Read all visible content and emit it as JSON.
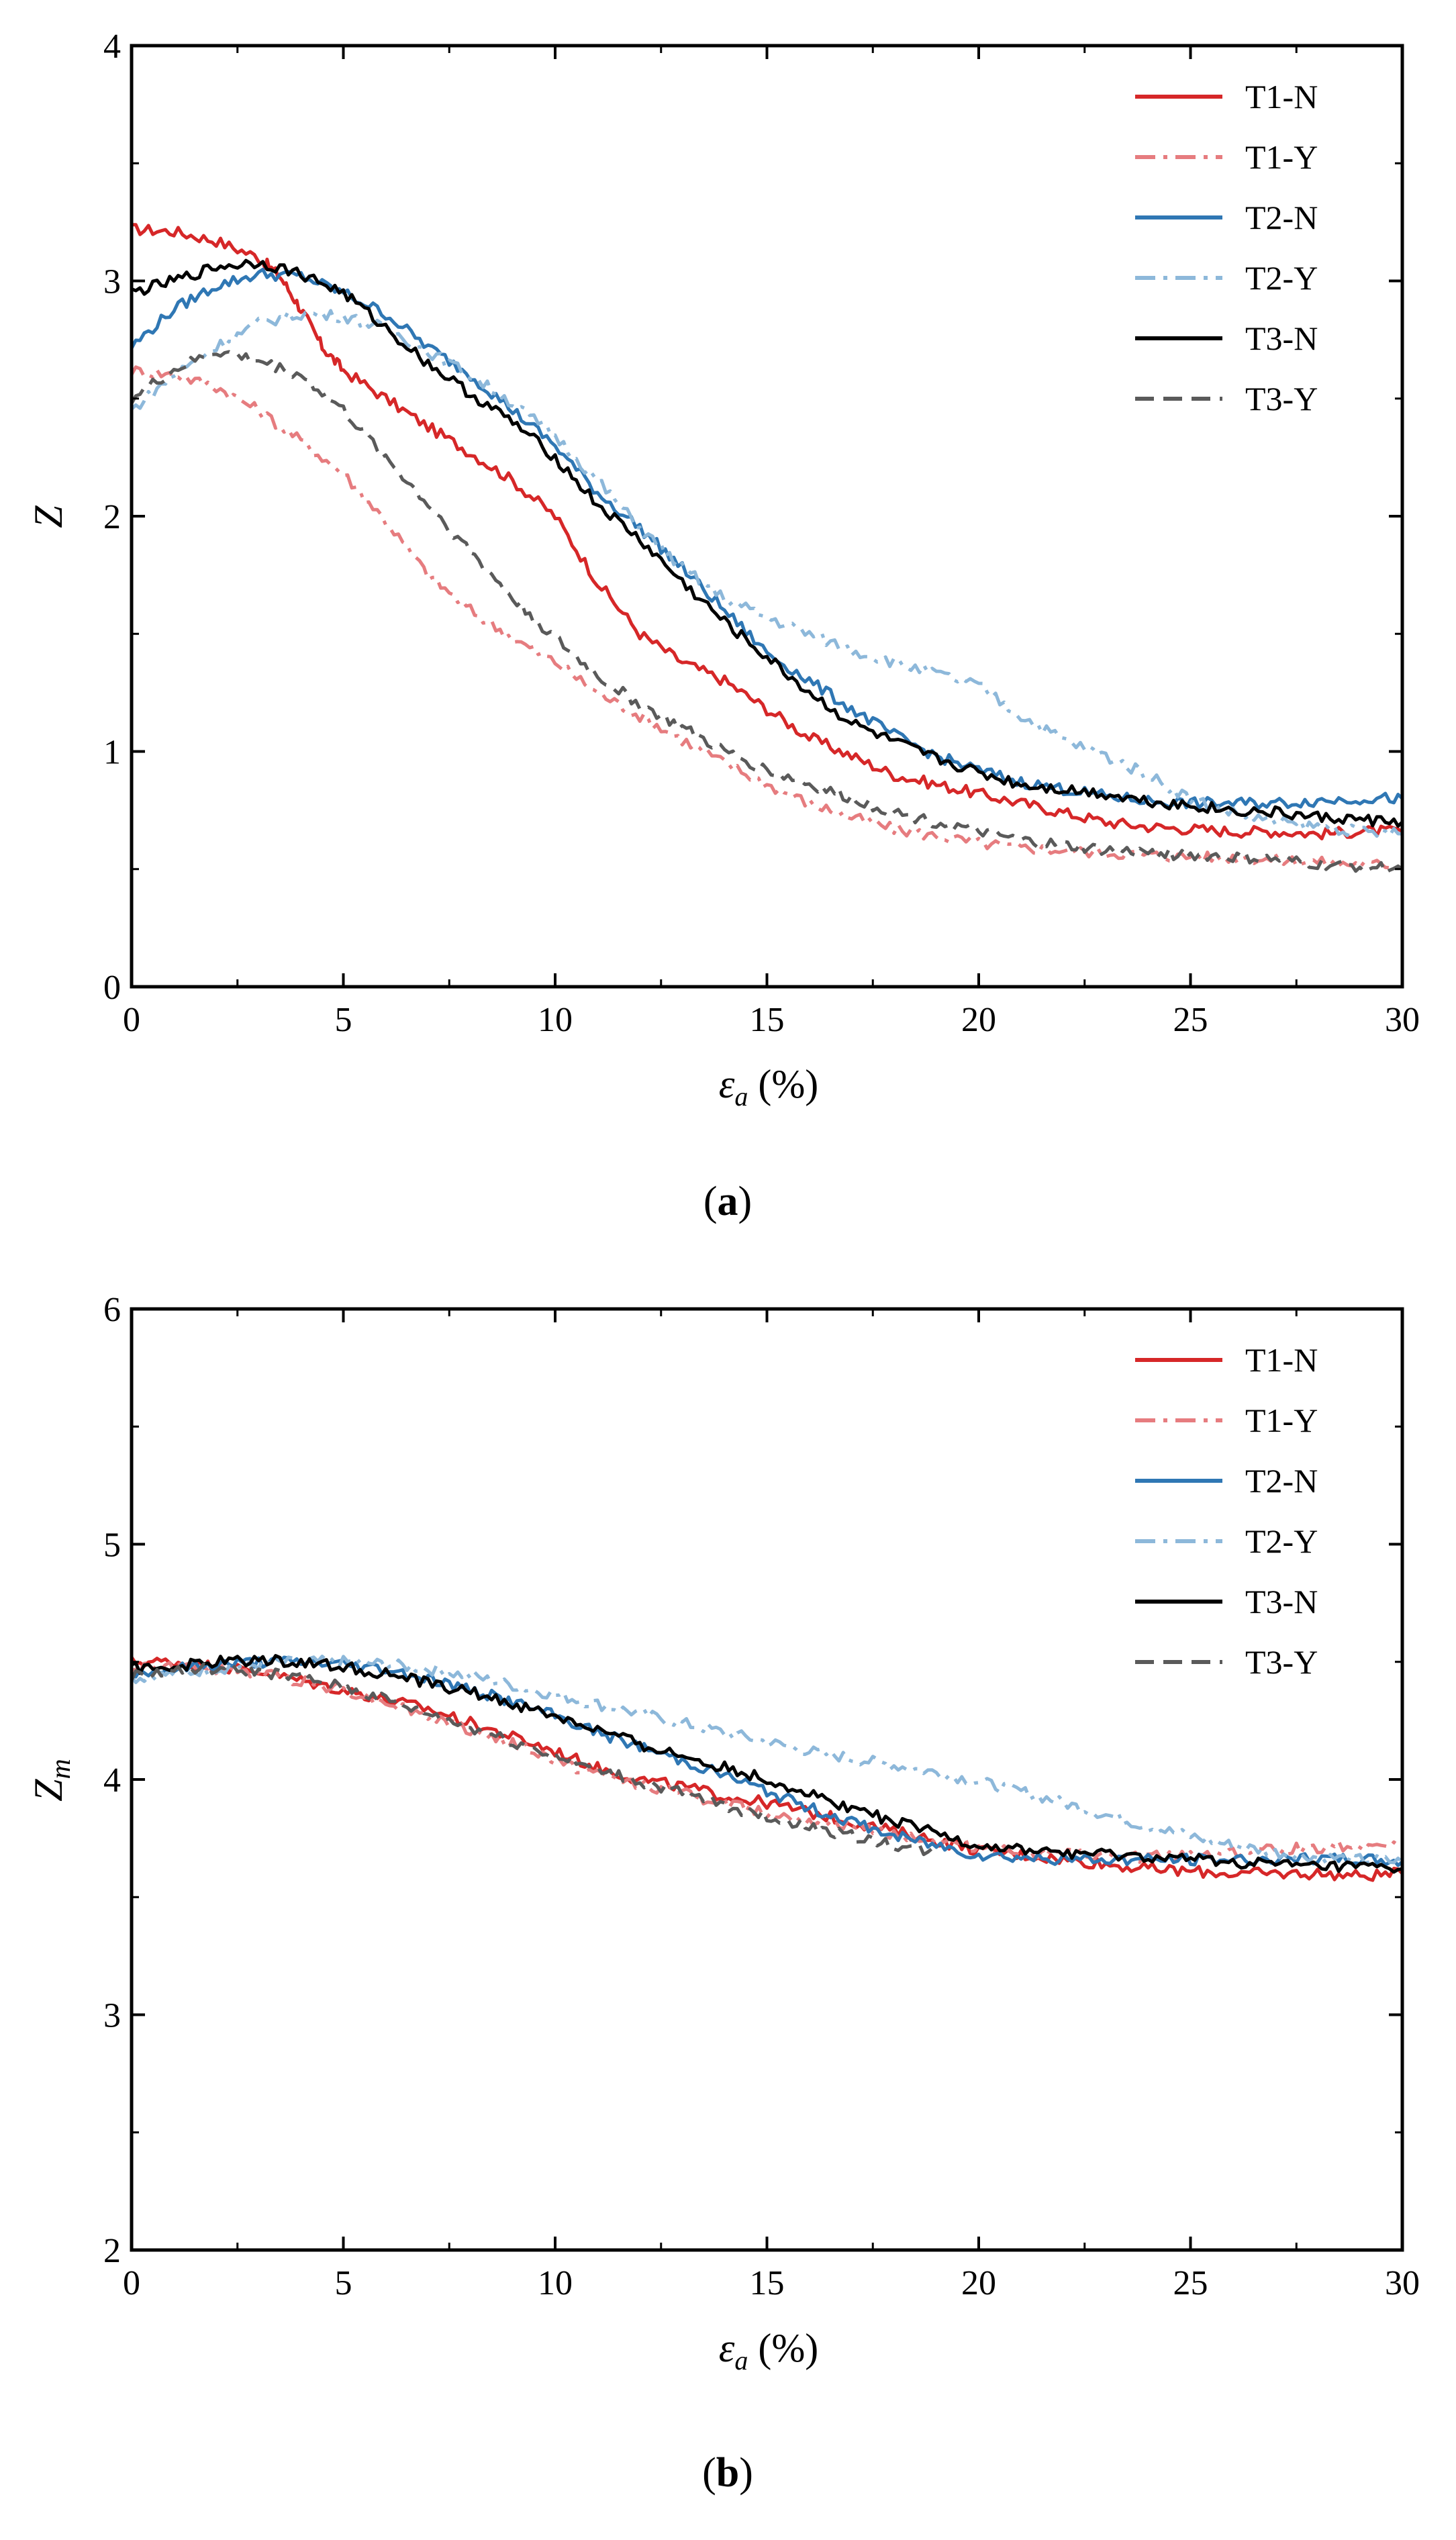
{
  "chart_data": [
    {
      "panel_label": "a",
      "type": "line",
      "ylabel": "Z",
      "xlabel": "εa (%)",
      "xlabel_main": "ε",
      "xlabel_sub": "a",
      "xlabel_unit": " (%)",
      "xlim": [
        0,
        30
      ],
      "ylim": [
        0,
        4
      ],
      "xticks": [
        0,
        5,
        10,
        15,
        20,
        25,
        30
      ],
      "yticks": [
        0,
        1,
        2,
        3,
        4
      ],
      "xtick_labels": [
        "0",
        "5",
        "10",
        "15",
        "20",
        "25",
        "30"
      ],
      "ytick_labels": [
        "0",
        "1",
        "2",
        "3",
        "4"
      ],
      "grid": false,
      "legend_position": "top-right",
      "series": [
        {
          "name": "T1-N",
          "color": "#d62728",
          "style": "solid",
          "x": [
            0,
            1,
            2,
            3,
            3.5,
            4,
            4.5,
            5,
            6,
            7,
            8,
            9,
            10,
            11,
            12,
            13,
            14,
            15,
            16,
            17,
            18,
            19,
            20,
            21,
            22,
            23,
            24,
            25,
            26,
            27,
            28,
            29,
            30
          ],
          "y": [
            3.22,
            3.21,
            3.17,
            3.1,
            3.02,
            2.88,
            2.72,
            2.62,
            2.5,
            2.38,
            2.27,
            2.15,
            2.0,
            1.72,
            1.5,
            1.38,
            1.3,
            1.18,
            1.06,
            0.98,
            0.9,
            0.86,
            0.82,
            0.78,
            0.74,
            0.7,
            0.68,
            0.67,
            0.66,
            0.66,
            0.65,
            0.66,
            0.66
          ]
        },
        {
          "name": "T1-Y",
          "color": "#e67c7f",
          "style": "dashdot",
          "x": [
            0,
            1,
            2,
            3,
            4,
            5,
            6,
            7,
            8,
            9,
            10,
            11,
            12,
            13,
            14,
            15,
            16,
            17,
            18,
            19,
            20,
            21,
            22,
            23,
            24,
            25,
            26,
            27,
            28,
            29,
            30
          ],
          "y": [
            2.62,
            2.6,
            2.55,
            2.45,
            2.32,
            2.18,
            1.98,
            1.75,
            1.6,
            1.48,
            1.38,
            1.25,
            1.15,
            1.05,
            0.95,
            0.86,
            0.78,
            0.72,
            0.67,
            0.64,
            0.61,
            0.59,
            0.58,
            0.57,
            0.56,
            0.55,
            0.55,
            0.54,
            0.53,
            0.52,
            0.52
          ]
        },
        {
          "name": "T2-N",
          "color": "#2f77b4",
          "style": "solid",
          "x": [
            0,
            1,
            2,
            3,
            4,
            5,
            6,
            7,
            8,
            9,
            10,
            11,
            12,
            13,
            14,
            15,
            16,
            17,
            18,
            19,
            20,
            21,
            22,
            23,
            24,
            25,
            26,
            27,
            28,
            29,
            30
          ],
          "y": [
            2.72,
            2.88,
            2.98,
            3.03,
            3.02,
            2.95,
            2.86,
            2.72,
            2.6,
            2.45,
            2.3,
            2.1,
            1.95,
            1.78,
            1.6,
            1.42,
            1.3,
            1.18,
            1.07,
            0.98,
            0.92,
            0.87,
            0.84,
            0.81,
            0.79,
            0.78,
            0.78,
            0.78,
            0.79,
            0.8,
            0.8
          ]
        },
        {
          "name": "T2-Y",
          "color": "#8db8da",
          "style": "dashdot",
          "x": [
            0,
            1,
            2,
            3,
            4,
            5,
            6,
            7,
            8,
            9,
            10,
            11,
            12,
            13,
            14,
            15,
            16,
            17,
            18,
            19,
            20,
            21,
            22,
            23,
            24,
            25,
            26,
            27,
            28,
            29,
            30
          ],
          "y": [
            2.45,
            2.6,
            2.72,
            2.82,
            2.86,
            2.85,
            2.8,
            2.7,
            2.6,
            2.48,
            2.34,
            2.15,
            1.95,
            1.78,
            1.65,
            1.57,
            1.5,
            1.43,
            1.38,
            1.33,
            1.28,
            1.15,
            1.05,
            0.98,
            0.9,
            0.8,
            0.74,
            0.7,
            0.68,
            0.66,
            0.65
          ]
        },
        {
          "name": "T3-N",
          "color": "#000000",
          "style": "solid",
          "x": [
            0,
            1,
            2,
            3,
            4,
            5,
            6,
            7,
            8,
            9,
            10,
            11,
            12,
            13,
            14,
            15,
            16,
            17,
            18,
            19,
            20,
            21,
            22,
            23,
            24,
            25,
            26,
            27,
            28,
            29,
            30
          ],
          "y": [
            2.95,
            3.0,
            3.06,
            3.08,
            3.03,
            2.95,
            2.8,
            2.65,
            2.52,
            2.4,
            2.25,
            2.05,
            1.9,
            1.72,
            1.55,
            1.4,
            1.25,
            1.12,
            1.04,
            0.97,
            0.91,
            0.86,
            0.84,
            0.82,
            0.79,
            0.77,
            0.75,
            0.74,
            0.72,
            0.71,
            0.7
          ]
        },
        {
          "name": "T3-Y",
          "color": "#5a5a5a",
          "style": "dashed",
          "x": [
            0,
            1,
            2,
            3,
            4,
            5,
            6,
            7,
            8,
            9,
            10,
            11,
            12,
            13,
            14,
            15,
            16,
            17,
            18,
            19,
            20,
            21,
            22,
            23,
            24,
            25,
            26,
            27,
            28,
            29,
            30
          ],
          "y": [
            2.5,
            2.62,
            2.7,
            2.66,
            2.6,
            2.45,
            2.25,
            2.05,
            1.85,
            1.65,
            1.48,
            1.32,
            1.2,
            1.1,
            1.0,
            0.92,
            0.86,
            0.8,
            0.74,
            0.7,
            0.66,
            0.62,
            0.6,
            0.58,
            0.57,
            0.56,
            0.55,
            0.54,
            0.52,
            0.51,
            0.5
          ]
        }
      ]
    },
    {
      "panel_label": "b",
      "type": "line",
      "ylabel": "Zm",
      "ylabel_main": "Z",
      "ylabel_sub": "m",
      "xlabel": "εa (%)",
      "xlabel_main": "ε",
      "xlabel_sub": "a",
      "xlabel_unit": " (%)",
      "xlim": [
        0,
        30
      ],
      "ylim": [
        2,
        6
      ],
      "xticks": [
        0,
        5,
        10,
        15,
        20,
        25,
        30
      ],
      "yticks": [
        2,
        3,
        4,
        5,
        6
      ],
      "xtick_labels": [
        "0",
        "5",
        "10",
        "15",
        "20",
        "25",
        "30"
      ],
      "ytick_labels": [
        "2",
        "3",
        "4",
        "5",
        "6"
      ],
      "grid": false,
      "legend_position": "top-right",
      "series": [
        {
          "name": "T1-N",
          "color": "#d62728",
          "style": "solid",
          "x": [
            0,
            1,
            2,
            3,
            4,
            5,
            6,
            7,
            8,
            9,
            10,
            11,
            12,
            13,
            14,
            15,
            16,
            17,
            18,
            19,
            20,
            21,
            22,
            23,
            24,
            25,
            26,
            27,
            28,
            29,
            30
          ],
          "y": [
            4.5,
            4.5,
            4.48,
            4.46,
            4.42,
            4.38,
            4.34,
            4.3,
            4.24,
            4.18,
            4.12,
            4.05,
            4.0,
            3.97,
            3.93,
            3.9,
            3.86,
            3.82,
            3.78,
            3.74,
            3.7,
            3.68,
            3.66,
            3.64,
            3.62,
            3.61,
            3.6,
            3.6,
            3.6,
            3.59,
            3.6
          ]
        },
        {
          "name": "T1-Y",
          "color": "#e67c7f",
          "style": "dashdot",
          "x": [
            0,
            1,
            2,
            3,
            4,
            5,
            6,
            7,
            8,
            9,
            10,
            11,
            12,
            13,
            14,
            15,
            16,
            17,
            18,
            19,
            20,
            21,
            22,
            23,
            24,
            25,
            26,
            27,
            28,
            29,
            30
          ],
          "y": [
            4.48,
            4.48,
            4.47,
            4.45,
            4.42,
            4.38,
            4.33,
            4.27,
            4.21,
            4.15,
            4.08,
            4.02,
            3.98,
            3.94,
            3.9,
            3.86,
            3.83,
            3.8,
            3.77,
            3.74,
            3.71,
            3.69,
            3.68,
            3.67,
            3.67,
            3.68,
            3.69,
            3.7,
            3.71,
            3.72,
            3.72
          ]
        },
        {
          "name": "T2-N",
          "color": "#2f77b4",
          "style": "solid",
          "x": [
            0,
            1,
            2,
            3,
            4,
            5,
            6,
            7,
            8,
            9,
            10,
            11,
            12,
            13,
            14,
            15,
            16,
            17,
            18,
            19,
            20,
            21,
            22,
            23,
            24,
            25,
            26,
            27,
            28,
            29,
            30
          ],
          "y": [
            4.45,
            4.47,
            4.49,
            4.5,
            4.5,
            4.49,
            4.47,
            4.43,
            4.38,
            4.33,
            4.27,
            4.2,
            4.14,
            4.08,
            4.02,
            3.95,
            3.88,
            3.82,
            3.76,
            3.72,
            3.68,
            3.67,
            3.66,
            3.66,
            3.66,
            3.66,
            3.66,
            3.66,
            3.66,
            3.66,
            3.65
          ]
        },
        {
          "name": "T2-Y",
          "color": "#8db8da",
          "style": "dashdot",
          "x": [
            0,
            1,
            2,
            3,
            4,
            5,
            6,
            7,
            8,
            9,
            10,
            11,
            12,
            13,
            14,
            15,
            16,
            17,
            18,
            19,
            20,
            21,
            22,
            23,
            24,
            25,
            26,
            27,
            28,
            29,
            30
          ],
          "y": [
            4.43,
            4.45,
            4.47,
            4.49,
            4.5,
            4.5,
            4.49,
            4.47,
            4.44,
            4.4,
            4.36,
            4.32,
            4.28,
            4.24,
            4.2,
            4.16,
            4.12,
            4.09,
            4.06,
            4.03,
            3.99,
            3.95,
            3.9,
            3.85,
            3.8,
            3.76,
            3.72,
            3.69,
            3.67,
            3.66,
            3.65
          ]
        },
        {
          "name": "T3-N",
          "color": "#000000",
          "style": "solid",
          "x": [
            0,
            1,
            2,
            3,
            4,
            5,
            6,
            7,
            8,
            9,
            10,
            11,
            12,
            13,
            14,
            15,
            16,
            17,
            18,
            19,
            20,
            21,
            22,
            23,
            24,
            25,
            26,
            27,
            28,
            29,
            30
          ],
          "y": [
            4.47,
            4.48,
            4.5,
            4.51,
            4.5,
            4.48,
            4.45,
            4.41,
            4.37,
            4.32,
            4.27,
            4.21,
            4.15,
            4.1,
            4.05,
            4.0,
            3.94,
            3.88,
            3.82,
            3.77,
            3.72,
            3.7,
            3.69,
            3.68,
            3.67,
            3.66,
            3.65,
            3.64,
            3.63,
            3.63,
            3.62
          ]
        },
        {
          "name": "T3-Y",
          "color": "#5a5a5a",
          "style": "dashed",
          "x": [
            0,
            1,
            2,
            3,
            4,
            5,
            6,
            7,
            8,
            9,
            10,
            11,
            12,
            13,
            14,
            15,
            16,
            17,
            18,
            19
          ],
          "y": [
            4.44,
            4.46,
            4.47,
            4.46,
            4.43,
            4.39,
            4.34,
            4.28,
            4.22,
            4.16,
            4.1,
            4.04,
            3.99,
            3.94,
            3.89,
            3.84,
            3.8,
            3.76,
            3.72,
            3.69
          ]
        }
      ]
    }
  ]
}
